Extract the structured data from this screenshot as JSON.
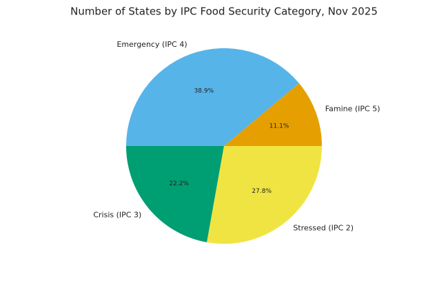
{
  "chart_data": {
    "type": "pie",
    "title": "Number of States by IPC Food Security Category, Nov 2025",
    "categories": [
      "Famine (IPC 5)",
      "Emergency (IPC 4)",
      "Crisis (IPC 3)",
      "Stressed (IPC 2)"
    ],
    "values": [
      11.1,
      38.9,
      22.2,
      27.8
    ],
    "value_labels": [
      "11.1%",
      "38.9%",
      "22.2%",
      "27.8%"
    ],
    "colors": [
      "#E69F00",
      "#56B4E9",
      "#009E73",
      "#F0E442"
    ]
  }
}
